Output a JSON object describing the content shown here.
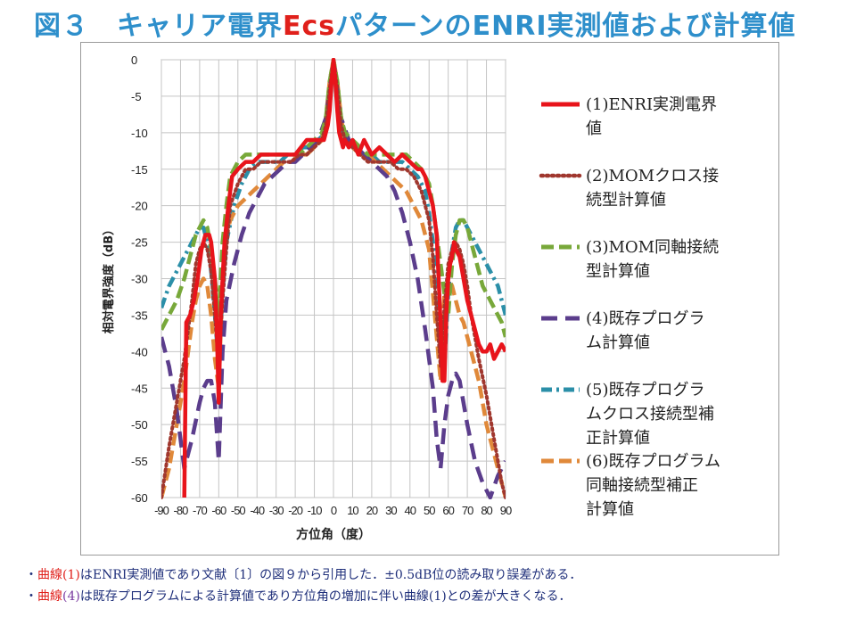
{
  "page": {
    "title_prefix": "図３　キャリア電界",
    "title_accent": "Ecs",
    "title_suffix": "パターンのENRI実測値および計算値"
  },
  "notes": [
    {
      "bullet": "・",
      "parts": [
        {
          "text": "曲線(1)",
          "style": "red"
        },
        {
          "text": "はENRI実測値であり文献〔1〕の図９から引用した．±0.5dB位の読み取り誤差がある．",
          "style": "normal"
        }
      ]
    },
    {
      "bullet": "・",
      "parts": [
        {
          "text": "曲線",
          "style": "red"
        },
        {
          "text": "(4)",
          "style": "purple"
        },
        {
          "text": "は既存プログラムによる計算値であり方位角の増加に伴い曲線(1)との差が大きくなる．",
          "style": "normal"
        }
      ]
    }
  ],
  "chart_data": {
    "type": "line",
    "title": "",
    "xlabel": "方位角（度）",
    "ylabel": "相対電界強度（dB）",
    "xlim": [
      -90,
      90
    ],
    "ylim": [
      -60,
      0
    ],
    "x_ticks": [
      -90,
      -80,
      -70,
      -60,
      -50,
      -40,
      -30,
      -20,
      -10,
      0,
      10,
      20,
      30,
      40,
      50,
      60,
      70,
      80,
      90
    ],
    "y_ticks": [
      0,
      -5,
      -10,
      -15,
      -20,
      -25,
      -30,
      -35,
      -40,
      -45,
      -50,
      -55,
      -60
    ],
    "grid": true,
    "legend_position": "right",
    "series": [
      {
        "name": "(1)ENRI実測電界値",
        "color": "#e8141b",
        "dash": "solid",
        "x": [
          -78,
          -77,
          -75,
          -73,
          -71,
          -69,
          -68,
          -67,
          -65,
          -64,
          -62,
          -61,
          -60,
          -59,
          -57,
          -55,
          -53,
          -50,
          -46,
          -42,
          -38,
          -34,
          -30,
          -26,
          -20,
          -14,
          -10,
          -7,
          -5,
          -4,
          -3,
          -2,
          -1,
          0,
          1,
          2,
          3,
          4,
          5,
          6,
          8,
          10,
          13,
          16,
          20,
          24,
          28,
          32,
          36,
          40,
          44,
          46,
          48,
          50,
          52,
          54,
          55,
          56,
          57,
          58,
          59,
          60,
          61,
          62,
          63,
          64,
          66,
          68,
          70,
          72,
          74,
          76,
          78,
          80,
          82,
          84,
          86,
          88,
          90
        ],
        "y": [
          -60,
          -36,
          -35,
          -33,
          -30,
          -26,
          -25,
          -24,
          -24,
          -25,
          -30,
          -37,
          -47,
          -35,
          -25,
          -20,
          -16,
          -15,
          -14,
          -14,
          -13,
          -13,
          -13,
          -13,
          -13,
          -11,
          -11,
          -11,
          -11,
          -10,
          -9,
          -7,
          -3,
          0,
          -3,
          -7,
          -10,
          -11,
          -12,
          -11,
          -12,
          -11,
          -13,
          -11,
          -13,
          -12,
          -13,
          -14,
          -13,
          -14,
          -15,
          -15,
          -16,
          -18,
          -20,
          -24,
          -30,
          -36,
          -44,
          -44,
          -35,
          -30,
          -28,
          -27,
          -25,
          -26,
          -27,
          -30,
          -33,
          -35,
          -37,
          -39,
          -40,
          -40,
          -39,
          -41,
          -40,
          -39,
          -40
        ]
      },
      {
        "name": "(2)MOMクロス接続型計算値",
        "color": "#a0372e",
        "dash": "dotted",
        "x": [
          -90,
          -86,
          -82,
          -78,
          -74,
          -72,
          -70,
          -68,
          -66,
          -64,
          -62,
          -60,
          -58,
          -56,
          -54,
          -50,
          -46,
          -42,
          -38,
          -34,
          -30,
          -26,
          -22,
          -18,
          -14,
          -10,
          -6,
          -4,
          -2,
          0,
          2,
          4,
          6,
          10,
          14,
          18,
          22,
          26,
          30,
          34,
          38,
          42,
          46,
          50,
          52,
          54,
          56,
          58,
          60,
          62,
          64,
          66,
          68,
          70,
          72,
          74,
          76,
          80,
          84,
          88,
          90
        ],
        "y": [
          -60,
          -53,
          -47,
          -41,
          -33,
          -28,
          -26,
          -25,
          -26,
          -29,
          -35,
          -42,
          -33,
          -26,
          -20,
          -17,
          -15,
          -15,
          -14,
          -14,
          -14,
          -14,
          -14,
          -13,
          -13,
          -12,
          -11,
          -9,
          -4,
          0,
          -4,
          -9,
          -11,
          -12,
          -13,
          -14,
          -14,
          -14,
          -14,
          -15,
          -15,
          -16,
          -18,
          -22,
          -27,
          -35,
          -42,
          -34,
          -28,
          -26,
          -25,
          -26,
          -28,
          -31,
          -35,
          -38,
          -41,
          -46,
          -52,
          -58,
          -60
        ]
      },
      {
        "name": "(3)MOM同軸接続型計算値",
        "color": "#78a83a",
        "dash": "dash",
        "x": [
          -90,
          -86,
          -82,
          -78,
          -76,
          -74,
          -72,
          -70,
          -68,
          -66,
          -64,
          -62,
          -60,
          -58,
          -56,
          -54,
          -50,
          -46,
          -42,
          -38,
          -34,
          -30,
          -26,
          -22,
          -18,
          -14,
          -10,
          -6,
          -4,
          -2,
          0,
          2,
          4,
          6,
          10,
          14,
          18,
          22,
          26,
          30,
          34,
          38,
          42,
          46,
          50,
          52,
          54,
          56,
          58,
          60,
          62,
          64,
          66,
          68,
          70,
          72,
          74,
          76,
          78,
          80,
          84,
          88,
          90
        ],
        "y": [
          -37,
          -35,
          -33,
          -30,
          -28,
          -26,
          -24,
          -23,
          -22,
          -23,
          -26,
          -30,
          -35,
          -25,
          -20,
          -16,
          -14,
          -13,
          -13,
          -13,
          -13,
          -13,
          -13,
          -13,
          -13,
          -12,
          -11,
          -10,
          -8,
          -3,
          0,
          -3,
          -8,
          -10,
          -11,
          -12,
          -13,
          -13,
          -13,
          -13,
          -13,
          -13,
          -14,
          -15,
          -17,
          -20,
          -24,
          -28,
          -32,
          -35,
          -28,
          -24,
          -22,
          -22,
          -23,
          -25,
          -27,
          -29,
          -31,
          -32,
          -34,
          -36,
          -38
        ]
      },
      {
        "name": "(4)既存プログラム計算値",
        "color": "#5b3d8c",
        "dash": "longdash",
        "x": [
          -90,
          -86,
          -82,
          -78,
          -74,
          -70,
          -68,
          -66,
          -64,
          -62,
          -60,
          -58,
          -56,
          -52,
          -48,
          -44,
          -40,
          -36,
          -32,
          -28,
          -24,
          -20,
          -16,
          -12,
          -8,
          -4,
          -2,
          0,
          2,
          4,
          8,
          12,
          16,
          20,
          24,
          28,
          32,
          36,
          40,
          44,
          48,
          52,
          54,
          56,
          58,
          60,
          62,
          64,
          66,
          68,
          70,
          74,
          78,
          82,
          86,
          90
        ],
        "y": [
          -38,
          -42,
          -48,
          -56,
          -52,
          -47,
          -45,
          -44,
          -44,
          -47,
          -55,
          -40,
          -33,
          -28,
          -24,
          -21,
          -19,
          -17,
          -16,
          -15,
          -14,
          -14,
          -13,
          -12,
          -11,
          -8,
          -4,
          0,
          -4,
          -8,
          -11,
          -12,
          -13,
          -14,
          -15,
          -16,
          -18,
          -21,
          -25,
          -30,
          -37,
          -45,
          -52,
          -56,
          -50,
          -46,
          -44,
          -43,
          -44,
          -47,
          -50,
          -55,
          -58,
          -60,
          -57,
          -55
        ]
      },
      {
        "name": "(5)既存プログラムクロス接続型補正計算値",
        "color": "#2b8fa8",
        "dash": "dashdot",
        "x": [
          -90,
          -86,
          -82,
          -78,
          -74,
          -72,
          -70,
          -68,
          -66,
          -64,
          -62,
          -60,
          -58,
          -56,
          -52,
          -48,
          -44,
          -40,
          -36,
          -32,
          -28,
          -24,
          -20,
          -16,
          -12,
          -8,
          -4,
          -2,
          0,
          2,
          4,
          8,
          12,
          16,
          20,
          24,
          28,
          32,
          36,
          40,
          44,
          48,
          50,
          52,
          54,
          56,
          58,
          60,
          62,
          64,
          66,
          68,
          70,
          74,
          78,
          82,
          86,
          90
        ],
        "y": [
          -34,
          -31,
          -29,
          -27,
          -25,
          -24,
          -23,
          -23,
          -25,
          -29,
          -35,
          -42,
          -32,
          -25,
          -20,
          -17,
          -15,
          -14,
          -14,
          -14,
          -14,
          -13,
          -13,
          -12,
          -12,
          -11,
          -10,
          -6,
          0,
          -6,
          -10,
          -11,
          -12,
          -13,
          -13,
          -14,
          -14,
          -14,
          -14,
          -15,
          -16,
          -18,
          -21,
          -25,
          -30,
          -37,
          -42,
          -32,
          -26,
          -23,
          -22,
          -22,
          -23,
          -25,
          -27,
          -29,
          -31,
          -35
        ]
      },
      {
        "name": "(6)既存プログラム同軸接続型補正計算値",
        "color": "#e0893a",
        "dash": "dash",
        "x": [
          -90,
          -88,
          -86,
          -84,
          -82,
          -80,
          -78,
          -76,
          -74,
          -72,
          -70,
          -68,
          -66,
          -64,
          -62,
          -60,
          -58,
          -56,
          -54,
          -52,
          -50,
          -46,
          -42,
          -38,
          -34,
          -30,
          -26,
          -22,
          -18,
          -14,
          -10,
          -6,
          -4,
          -2,
          0,
          2,
          4,
          6,
          10,
          14,
          18,
          22,
          26,
          30,
          34,
          38,
          42,
          46,
          50,
          52,
          54,
          56,
          58,
          60,
          62,
          64,
          66,
          68,
          70,
          72,
          74,
          76,
          78,
          80,
          82,
          84,
          86,
          88,
          90
        ],
        "y": [
          -60,
          -58,
          -56,
          -53,
          -50,
          -47,
          -44,
          -40,
          -36,
          -33,
          -31,
          -30,
          -31,
          -35,
          -41,
          -45,
          -30,
          -24,
          -22,
          -21,
          -20,
          -19,
          -18,
          -17,
          -16,
          -15,
          -14,
          -14,
          -13,
          -13,
          -12,
          -11,
          -8,
          -3,
          0,
          -3,
          -8,
          -11,
          -12,
          -13,
          -13,
          -14,
          -15,
          -16,
          -17,
          -18,
          -20,
          -22,
          -26,
          -32,
          -38,
          -44,
          -32,
          -30,
          -31,
          -33,
          -35,
          -36,
          -38,
          -40,
          -42,
          -44,
          -47,
          -50,
          -52,
          -54,
          -56,
          -58,
          -60
        ]
      }
    ]
  }
}
